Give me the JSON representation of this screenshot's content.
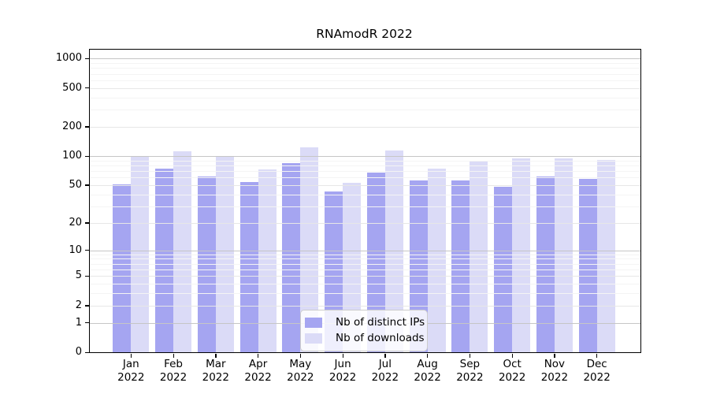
{
  "chart_data": {
    "type": "bar",
    "title": "RNAmodR 2022",
    "categories": [
      "Jan",
      "Feb",
      "Mar",
      "Apr",
      "May",
      "Jun",
      "Jul",
      "Aug",
      "Sep",
      "Oct",
      "Nov",
      "Dec"
    ],
    "category_year": "2022",
    "series": [
      {
        "name": "Nb of distinct IPs",
        "color": "#a5a5f1",
        "values": [
          51,
          74,
          62,
          54,
          84,
          43,
          67,
          56,
          56,
          48,
          62,
          58
        ]
      },
      {
        "name": "Nb of downloads",
        "color": "#dbdbf7",
        "values": [
          101,
          113,
          99,
          73,
          122,
          53,
          114,
          74,
          87,
          94,
          94,
          92
        ]
      }
    ],
    "y_axis": {
      "scale": "log10(1+x)",
      "ticks": [
        0,
        1,
        2,
        5,
        10,
        20,
        50,
        100,
        200,
        500,
        1000
      ],
      "minor_gridlines": [
        3,
        4,
        6,
        7,
        8,
        9,
        30,
        40,
        60,
        70,
        80,
        90,
        300,
        400,
        600,
        700,
        800,
        900
      ],
      "decade_lines": [
        1,
        10,
        100,
        1000
      ],
      "ylim": [
        0,
        1230
      ]
    },
    "xlabel": "",
    "ylabel": "",
    "grid": true,
    "legend": {
      "position": "lower center",
      "entries": [
        "Nb of distinct IPs",
        "Nb of downloads"
      ]
    }
  },
  "colors": {
    "bar_distinct_ips": "#a5a5f1",
    "bar_downloads": "#dbdbf7",
    "minor_gridline": "#f4f4f4",
    "major_gridline": "#e7e7e7",
    "decade_gridline": "#c6c6c6",
    "spine": "#000000",
    "text": "#000000",
    "legend_border": "#cccccc"
  }
}
